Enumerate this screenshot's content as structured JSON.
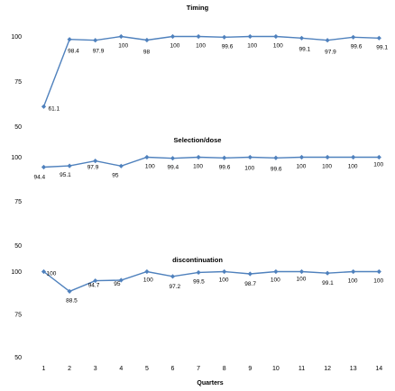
{
  "chart_data": [
    {
      "type": "line",
      "title": "Timing",
      "x": [
        "1",
        "2",
        "3",
        "4",
        "5",
        "6",
        "7",
        "8",
        "9",
        "10",
        "11",
        "12",
        "13",
        "14"
      ],
      "values": [
        61.1,
        98.4,
        97.9,
        100,
        98,
        100,
        100,
        99.6,
        100,
        100,
        99.1,
        97.9,
        99.6,
        99.1
      ],
      "labels": [
        "61.1",
        "98.4",
        "97.9",
        "100",
        "98",
        "100",
        "100",
        "99.6",
        "100",
        "100",
        "99.1",
        "97.9",
        "99.6",
        "99.1"
      ],
      "yticks": [
        "100",
        "75",
        "50"
      ],
      "ylim": [
        50,
        100
      ],
      "color": "#4f81bd"
    },
    {
      "type": "line",
      "title": "Selection/dose",
      "x": [
        "1",
        "2",
        "3",
        "4",
        "5",
        "6",
        "7",
        "8",
        "9",
        "10",
        "11",
        "12",
        "13",
        "14"
      ],
      "values": [
        94.4,
        95.1,
        97.9,
        95,
        100,
        99.4,
        100,
        99.6,
        100,
        99.6,
        100,
        100,
        100,
        100
      ],
      "labels": [
        "94.4",
        "95.1",
        "97.9",
        "95",
        "100",
        "99.4",
        "100",
        "99.6",
        "100",
        "99.6",
        "100",
        "100",
        "100",
        "100"
      ],
      "yticks": [
        "100",
        "75",
        "50"
      ],
      "ylim": [
        50,
        100
      ],
      "color": "#4f81bd"
    },
    {
      "type": "line",
      "title": "discontinuation",
      "x": [
        "1",
        "2",
        "3",
        "4",
        "5",
        "6",
        "7",
        "8",
        "9",
        "10",
        "11",
        "12",
        "13",
        "14"
      ],
      "values": [
        100,
        88.5,
        94.7,
        95,
        100,
        97.2,
        99.5,
        100,
        98.7,
        100,
        100,
        99.1,
        100,
        100
      ],
      "labels": [
        "100",
        "88.5",
        "94.7",
        "95",
        "100",
        "97.2",
        "99.5",
        "100",
        "98.7",
        "100",
        "100",
        "99.1",
        "100",
        "100"
      ],
      "yticks": [
        "100",
        "75",
        "50"
      ],
      "ylim": [
        50,
        100
      ],
      "color": "#4f81bd"
    }
  ],
  "x_axis": {
    "label": "Quarters",
    "ticks": [
      "1",
      "2",
      "3",
      "4",
      "5",
      "6",
      "7",
      "8",
      "9",
      "10",
      "11",
      "12",
      "13",
      "14"
    ]
  }
}
